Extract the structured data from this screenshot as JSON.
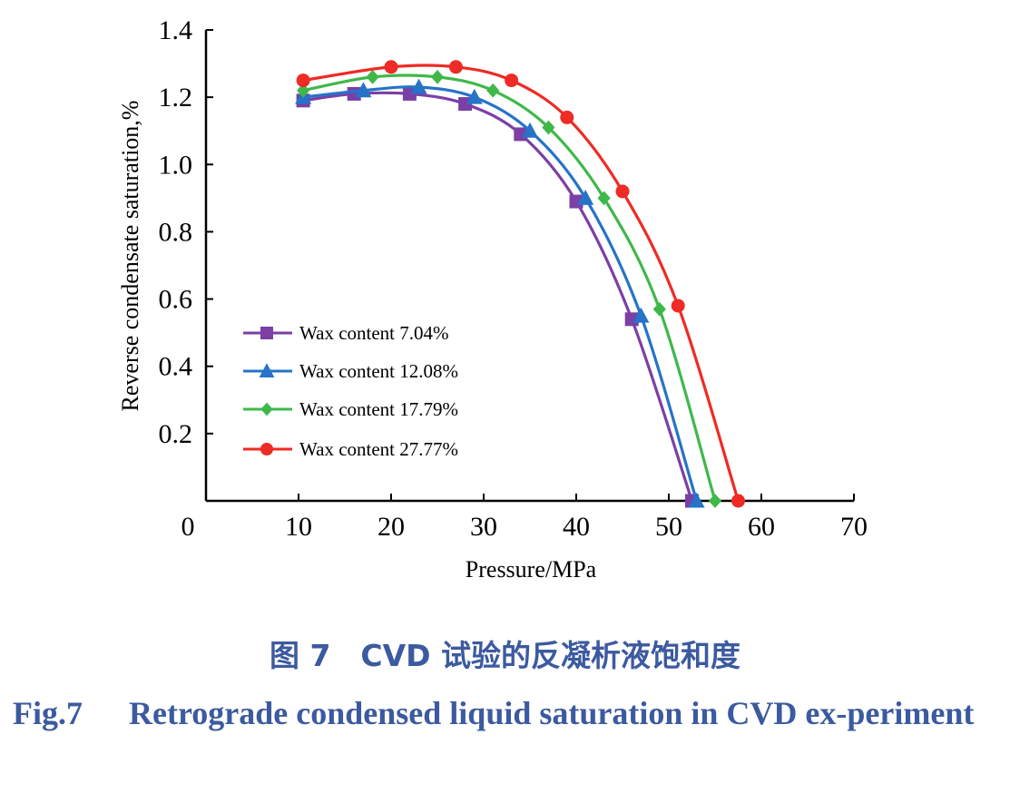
{
  "chart_data": {
    "type": "line",
    "xlabel": "Pressure/MPa",
    "ylabel": "Reverse condensate saturation,%",
    "xlim": [
      0,
      70
    ],
    "ylim": [
      0,
      1.4
    ],
    "xticks": [
      "0",
      "10",
      "20",
      "30",
      "40",
      "50",
      "60",
      "70"
    ],
    "yticks": [
      "0.2",
      "0.4",
      "0.6",
      "0.8",
      "1.0",
      "1.2",
      "1.4"
    ],
    "legend_position": "left-center",
    "series": [
      {
        "name": "Wax content 7.04%",
        "marker": "square",
        "color": "#7b3fa6",
        "x": [
          10.5,
          16,
          22,
          28,
          34,
          40,
          46,
          52.5
        ],
        "y": [
          1.19,
          1.21,
          1.21,
          1.18,
          1.09,
          0.89,
          0.54,
          0.0
        ]
      },
      {
        "name": "Wax content 12.08%",
        "marker": "triangle",
        "color": "#2673c8",
        "x": [
          10.5,
          17,
          23,
          29,
          35,
          41,
          47,
          53
        ],
        "y": [
          1.2,
          1.22,
          1.23,
          1.2,
          1.1,
          0.9,
          0.55,
          0.0
        ]
      },
      {
        "name": "Wax content 17.79%",
        "marker": "diamond",
        "color": "#3fb84a",
        "x": [
          10.5,
          18,
          25,
          31,
          37,
          43,
          49,
          55
        ],
        "y": [
          1.22,
          1.26,
          1.26,
          1.22,
          1.11,
          0.9,
          0.57,
          0.0
        ]
      },
      {
        "name": "Wax content 27.77%",
        "marker": "circle",
        "color": "#ee2b24",
        "x": [
          10.5,
          20,
          27,
          33,
          39,
          45,
          51,
          57.5
        ],
        "y": [
          1.25,
          1.29,
          1.29,
          1.25,
          1.14,
          0.92,
          0.58,
          0.0
        ]
      }
    ]
  },
  "caption": {
    "cn": "图 7　CVD 试验的反凝析液饱和度",
    "en_num": "Fig.7",
    "en_text": "Retrograde condensed liquid saturation in CVD ex-periment"
  }
}
